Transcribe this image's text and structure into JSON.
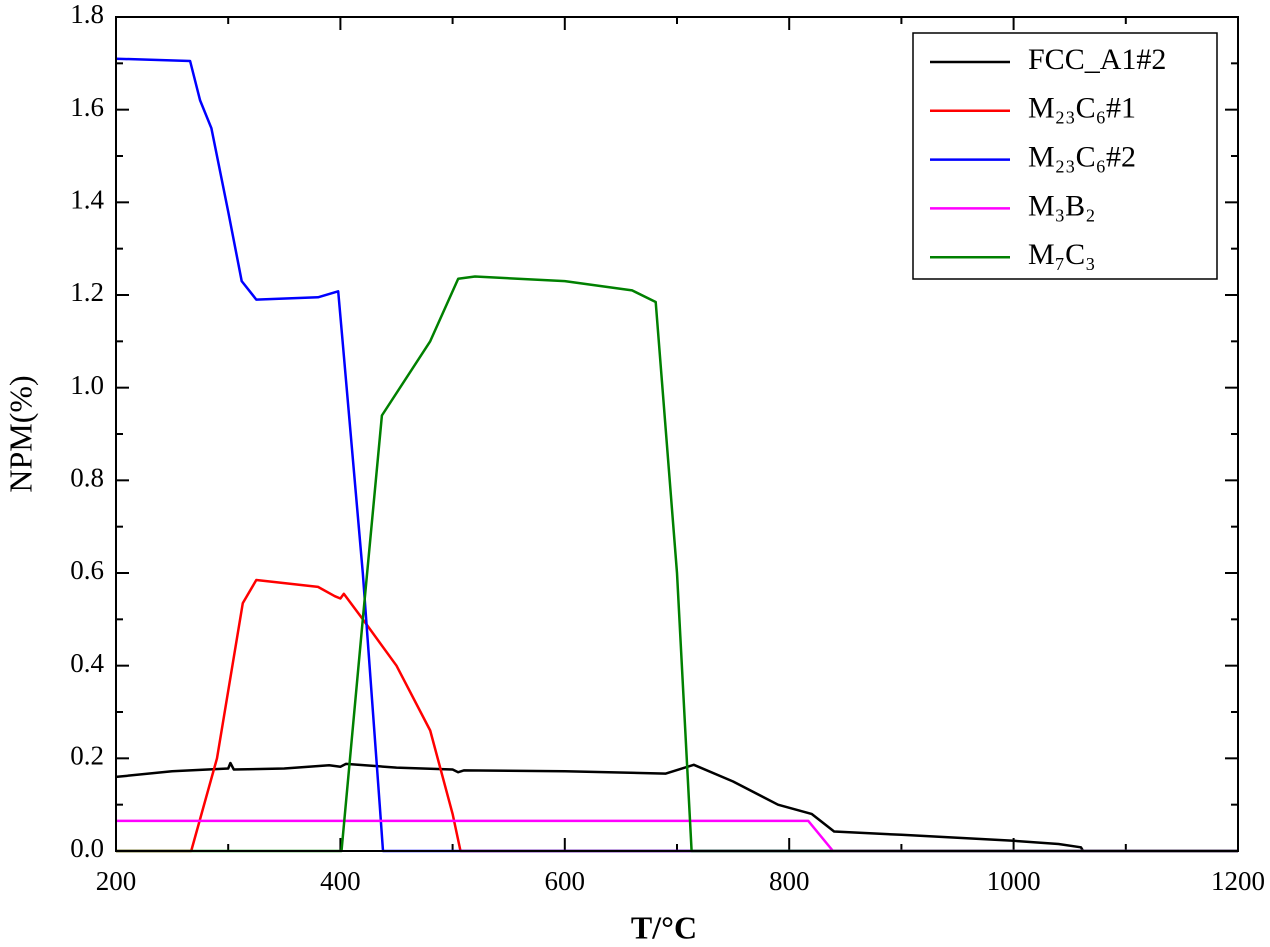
{
  "chart_data": {
    "type": "line",
    "xlabel": "T/°C",
    "ylabel": "NPM(%)",
    "xlim": [
      200,
      1200
    ],
    "xticks": [
      200,
      400,
      600,
      800,
      1000,
      1200
    ],
    "ylim": [
      0,
      1.8
    ],
    "yticks": [
      {
        "value": 0,
        "label": "0.0"
      },
      0.2,
      0.4,
      0.6,
      0.8,
      {
        "value": 1,
        "label": "1.0"
      },
      1.2,
      1.4,
      1.6,
      1.8
    ],
    "legend": "upper right",
    "series": [
      {
        "name": "FCC_A1#2",
        "color": "#000000",
        "x": [
          200,
          250,
          300,
          302,
          305,
          350,
          390,
          400,
          405,
          450,
          500,
          505,
          510,
          600,
          690,
          715,
          750,
          790,
          820,
          840,
          900,
          1000,
          1040,
          1060,
          1062,
          1200
        ],
        "values": [
          0.16,
          0.172,
          0.178,
          0.19,
          0.176,
          0.178,
          0.185,
          0.182,
          0.188,
          0.18,
          0.176,
          0.17,
          0.174,
          0.172,
          0.167,
          0.186,
          0.15,
          0.1,
          0.08,
          0.042,
          0.035,
          0.022,
          0.015,
          0.008,
          0,
          0
        ]
      },
      {
        "name": "M₂₃C₆#1",
        "color": "#ff0000",
        "x": [
          200,
          267,
          290,
          313,
          325,
          380,
          395,
          400,
          403,
          420,
          450,
          480,
          500,
          507,
          1200
        ],
        "values": [
          0,
          0,
          0.2,
          0.535,
          0.585,
          0.57,
          0.55,
          0.545,
          0.555,
          0.5,
          0.4,
          0.26,
          0.08,
          0,
          0
        ]
      },
      {
        "name": "M₂₃C₆#2",
        "color": "#0000ff",
        "x": [
          200,
          266,
          275,
          285,
          300,
          312,
          325,
          380,
          398,
          402,
          420,
          435,
          438,
          1200
        ],
        "values": [
          1.71,
          1.705,
          1.62,
          1.56,
          1.38,
          1.23,
          1.19,
          1.195,
          1.208,
          1.1,
          0.6,
          0.1,
          0,
          0
        ]
      },
      {
        "name": "M₃B₂",
        "color": "#ff00ff",
        "x": [
          200,
          817,
          839,
          1200
        ],
        "values": [
          0.065,
          0.065,
          0,
          0
        ]
      },
      {
        "name": "M₇C₃",
        "color": "#008000",
        "x": [
          200,
          401,
          420,
          437,
          480,
          505,
          520,
          600,
          660,
          681,
          700,
          713,
          1200
        ],
        "values": [
          0,
          0,
          0.5,
          0.94,
          1.1,
          1.235,
          1.24,
          1.23,
          1.21,
          1.185,
          0.6,
          0,
          0
        ]
      }
    ]
  }
}
